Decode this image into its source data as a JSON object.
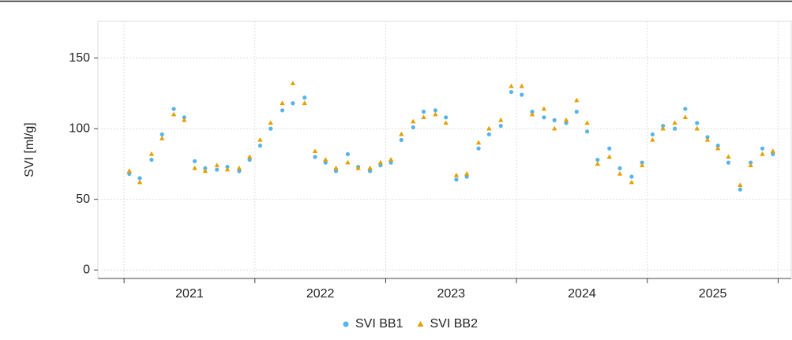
{
  "chart_data": {
    "type": "scatter",
    "y_label": "SVI [ml/g]",
    "x": [
      2021.04,
      2021.12,
      2021.21,
      2021.29,
      2021.38,
      2021.46,
      2021.54,
      2021.62,
      2021.71,
      2021.79,
      2021.88,
      2021.96,
      2022.04,
      2022.12,
      2022.21,
      2022.29,
      2022.38,
      2022.46,
      2022.54,
      2022.62,
      2022.71,
      2022.79,
      2022.88,
      2022.96,
      2023.04,
      2023.12,
      2023.21,
      2023.29,
      2023.38,
      2023.46,
      2023.54,
      2023.62,
      2023.71,
      2023.79,
      2023.88,
      2023.96,
      2024.04,
      2024.12,
      2024.21,
      2024.29,
      2024.38,
      2024.46,
      2024.54,
      2024.62,
      2024.71,
      2024.79,
      2024.88,
      2024.96,
      2025.04,
      2025.12,
      2025.21,
      2025.29,
      2025.38,
      2025.46,
      2025.54,
      2025.62,
      2025.71,
      2025.79,
      2025.88,
      2025.96
    ],
    "series": [
      {
        "name": "SVI BB1",
        "color": "#56b4e9",
        "marker": "circle",
        "values": [
          68,
          65,
          78,
          96,
          114,
          108,
          77,
          72,
          71,
          73,
          70,
          78,
          88,
          100,
          113,
          118,
          122,
          80,
          76,
          70,
          82,
          73,
          70,
          74,
          76,
          92,
          101,
          112,
          113,
          108,
          64,
          66,
          86,
          96,
          102,
          126,
          124,
          112,
          108,
          106,
          104,
          112,
          98,
          78,
          86,
          72,
          66,
          76,
          96,
          102,
          100,
          114,
          104,
          94,
          88,
          76,
          57,
          76,
          86,
          82
        ]
      },
      {
        "name": "SVI BB2",
        "color": "#e69f00",
        "marker": "triangle",
        "values": [
          70,
          62,
          82,
          93,
          110,
          106,
          72,
          70,
          74,
          71,
          72,
          80,
          92,
          104,
          118,
          132,
          118,
          84,
          78,
          72,
          76,
          72,
          72,
          76,
          78,
          96,
          105,
          108,
          110,
          104,
          67,
          68,
          90,
          100,
          106,
          130,
          130,
          110,
          114,
          100,
          106,
          120,
          104,
          75,
          80,
          68,
          62,
          74,
          92,
          100,
          104,
          108,
          100,
          92,
          86,
          80,
          60,
          74,
          82,
          84
        ]
      }
    ],
    "xlim": [
      2020.8,
      2026.1
    ],
    "ylim": [
      -6,
      176
    ],
    "yticks": [
      0,
      50,
      100,
      150
    ],
    "xticks": [
      {
        "value": 2021.5,
        "label": "2021"
      },
      {
        "value": 2022.5,
        "label": "2022"
      },
      {
        "value": 2023.5,
        "label": "2023"
      },
      {
        "value": 2024.5,
        "label": "2024"
      },
      {
        "value": 2025.5,
        "label": "2025"
      }
    ],
    "x_boundaries": [
      2021,
      2022,
      2023,
      2024,
      2025,
      2026
    ],
    "grid": true,
    "legend": "bottom"
  }
}
